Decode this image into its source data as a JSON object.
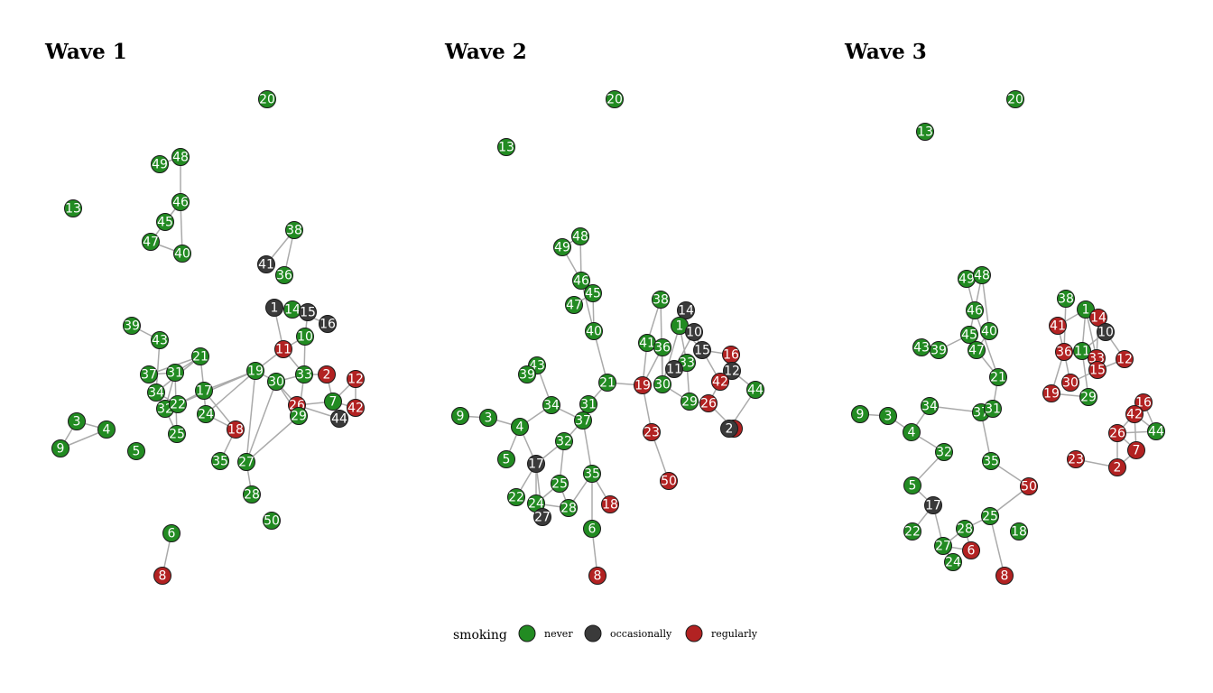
{
  "colors": {
    "never": "#228b22",
    "occasionally": "#3a3a3a",
    "regularly": "#b22222"
  },
  "legend": {
    "title": "smoking",
    "items": [
      {
        "key": "never",
        "label": "never"
      },
      {
        "key": "occasionally",
        "label": "occasionally"
      },
      {
        "key": "regularly",
        "label": "regularly"
      }
    ]
  },
  "waves": [
    {
      "title": "Wave 1",
      "nodes": [
        [
          "20",
          "never"
        ],
        [
          "13",
          "never"
        ],
        [
          "49",
          "never"
        ],
        [
          "48",
          "never"
        ],
        [
          "46",
          "never"
        ],
        [
          "45",
          "never"
        ],
        [
          "47",
          "never"
        ],
        [
          "40",
          "never"
        ],
        [
          "38",
          "never"
        ],
        [
          "41",
          "occasionally"
        ],
        [
          "36",
          "never"
        ],
        [
          "1",
          "occasionally"
        ],
        [
          "14",
          "never"
        ],
        [
          "15",
          "occasionally"
        ],
        [
          "16",
          "occasionally"
        ],
        [
          "10",
          "never"
        ],
        [
          "11",
          "regularly"
        ],
        [
          "39",
          "never"
        ],
        [
          "43",
          "never"
        ],
        [
          "21",
          "never"
        ],
        [
          "37",
          "never"
        ],
        [
          "31",
          "never"
        ],
        [
          "34",
          "never"
        ],
        [
          "17",
          "never"
        ],
        [
          "19",
          "never"
        ],
        [
          "30",
          "never"
        ],
        [
          "33",
          "never"
        ],
        [
          "2",
          "regularly"
        ],
        [
          "12",
          "regularly"
        ],
        [
          "32",
          "never"
        ],
        [
          "22",
          "never"
        ],
        [
          "24",
          "never"
        ],
        [
          "26",
          "regularly"
        ],
        [
          "7",
          "never"
        ],
        [
          "29",
          "never"
        ],
        [
          "44",
          "occasionally"
        ],
        [
          "42",
          "regularly"
        ],
        [
          "3",
          "never"
        ],
        [
          "4",
          "never"
        ],
        [
          "9",
          "never"
        ],
        [
          "25",
          "never"
        ],
        [
          "5",
          "never"
        ],
        [
          "18",
          "regularly"
        ],
        [
          "35",
          "never"
        ],
        [
          "27",
          "never"
        ],
        [
          "28",
          "never"
        ],
        [
          "50",
          "never"
        ],
        [
          "6",
          "never"
        ],
        [
          "8",
          "regularly"
        ]
      ],
      "edges": [
        [
          "49",
          "48"
        ],
        [
          "48",
          "46"
        ],
        [
          "46",
          "45"
        ],
        [
          "45",
          "47"
        ],
        [
          "47",
          "40"
        ],
        [
          "46",
          "40"
        ],
        [
          "38",
          "41"
        ],
        [
          "38",
          "36"
        ],
        [
          "1",
          "11"
        ],
        [
          "1",
          "14"
        ],
        [
          "14",
          "15"
        ],
        [
          "15",
          "10"
        ],
        [
          "14",
          "16"
        ],
        [
          "10",
          "11"
        ],
        [
          "11",
          "19"
        ],
        [
          "11",
          "33"
        ],
        [
          "10",
          "33"
        ],
        [
          "39",
          "43"
        ],
        [
          "43",
          "34"
        ],
        [
          "34",
          "21"
        ],
        [
          "21",
          "31"
        ],
        [
          "21",
          "37"
        ],
        [
          "37",
          "31"
        ],
        [
          "31",
          "32"
        ],
        [
          "32",
          "22"
        ],
        [
          "34",
          "22"
        ],
        [
          "22",
          "17"
        ],
        [
          "17",
          "21"
        ],
        [
          "17",
          "24"
        ],
        [
          "24",
          "19"
        ],
        [
          "17",
          "19"
        ],
        [
          "22",
          "19"
        ],
        [
          "19",
          "30"
        ],
        [
          "30",
          "33"
        ],
        [
          "30",
          "26"
        ],
        [
          "30",
          "29"
        ],
        [
          "33",
          "29"
        ],
        [
          "33",
          "2"
        ],
        [
          "26",
          "7"
        ],
        [
          "26",
          "29"
        ],
        [
          "26",
          "44"
        ],
        [
          "7",
          "12"
        ],
        [
          "12",
          "42"
        ],
        [
          "7",
          "42"
        ],
        [
          "2",
          "7"
        ],
        [
          "19",
          "27"
        ],
        [
          "30",
          "27"
        ],
        [
          "27",
          "29"
        ],
        [
          "24",
          "18"
        ],
        [
          "17",
          "18"
        ],
        [
          "18",
          "35"
        ],
        [
          "27",
          "28"
        ],
        [
          "32",
          "25"
        ],
        [
          "3",
          "4"
        ],
        [
          "3",
          "9"
        ],
        [
          "9",
          "4"
        ],
        [
          "6",
          "8"
        ],
        [
          "31",
          "25"
        ]
      ]
    },
    {
      "title": "Wave 2",
      "nodes": [
        [
          "20",
          "never"
        ],
        [
          "13",
          "never"
        ],
        [
          "49",
          "never"
        ],
        [
          "48",
          "never"
        ],
        [
          "46",
          "never"
        ],
        [
          "45",
          "never"
        ],
        [
          "47",
          "never"
        ],
        [
          "40",
          "never"
        ],
        [
          "38",
          "never"
        ],
        [
          "14",
          "occasionally"
        ],
        [
          "1",
          "never"
        ],
        [
          "10",
          "occasionally"
        ],
        [
          "41",
          "never"
        ],
        [
          "36",
          "never"
        ],
        [
          "15",
          "occasionally"
        ],
        [
          "16",
          "regularly"
        ],
        [
          "33",
          "never"
        ],
        [
          "11",
          "occasionally"
        ],
        [
          "12",
          "occasionally"
        ],
        [
          "42",
          "regularly"
        ],
        [
          "44",
          "never"
        ],
        [
          "30",
          "never"
        ],
        [
          "19",
          "regularly"
        ],
        [
          "21",
          "never"
        ],
        [
          "29",
          "never"
        ],
        [
          "26",
          "regularly"
        ],
        [
          "43",
          "never"
        ],
        [
          "39",
          "never"
        ],
        [
          "34",
          "never"
        ],
        [
          "31",
          "never"
        ],
        [
          "37",
          "never"
        ],
        [
          "9",
          "never"
        ],
        [
          "3",
          "never"
        ],
        [
          "4",
          "never"
        ],
        [
          "7",
          "regularly"
        ],
        [
          "2",
          "occasionally"
        ],
        [
          "23",
          "regularly"
        ],
        [
          "32",
          "never"
        ],
        [
          "5",
          "never"
        ],
        [
          "17",
          "occasionally"
        ],
        [
          "35",
          "never"
        ],
        [
          "50",
          "regularly"
        ],
        [
          "25",
          "never"
        ],
        [
          "22",
          "never"
        ],
        [
          "24",
          "never"
        ],
        [
          "28",
          "never"
        ],
        [
          "27",
          "occasionally"
        ],
        [
          "18",
          "regularly"
        ],
        [
          "6",
          "never"
        ],
        [
          "8",
          "regularly"
        ]
      ],
      "edges": [
        [
          "49",
          "48"
        ],
        [
          "48",
          "46"
        ],
        [
          "49",
          "46"
        ],
        [
          "46",
          "45"
        ],
        [
          "45",
          "47"
        ],
        [
          "46",
          "40"
        ],
        [
          "45",
          "40"
        ],
        [
          "40",
          "21"
        ],
        [
          "21",
          "31"
        ],
        [
          "31",
          "37"
        ],
        [
          "21",
          "19"
        ],
        [
          "19",
          "41"
        ],
        [
          "19",
          "36"
        ],
        [
          "41",
          "38"
        ],
        [
          "38",
          "30"
        ],
        [
          "41",
          "36"
        ],
        [
          "36",
          "30"
        ],
        [
          "1",
          "14"
        ],
        [
          "1",
          "10"
        ],
        [
          "1",
          "15"
        ],
        [
          "1",
          "33"
        ],
        [
          "1",
          "30"
        ],
        [
          "10",
          "15"
        ],
        [
          "10",
          "11"
        ],
        [
          "15",
          "16"
        ],
        [
          "15",
          "42"
        ],
        [
          "16",
          "12"
        ],
        [
          "12",
          "44"
        ],
        [
          "42",
          "12"
        ],
        [
          "42",
          "26"
        ],
        [
          "33",
          "29"
        ],
        [
          "29",
          "26"
        ],
        [
          "30",
          "29"
        ],
        [
          "11",
          "33"
        ],
        [
          "44",
          "2"
        ],
        [
          "26",
          "7"
        ],
        [
          "7",
          "2"
        ],
        [
          "19",
          "23"
        ],
        [
          "23",
          "50"
        ],
        [
          "43",
          "34"
        ],
        [
          "39",
          "43"
        ],
        [
          "34",
          "37"
        ],
        [
          "4",
          "34"
        ],
        [
          "9",
          "3"
        ],
        [
          "3",
          "4"
        ],
        [
          "4",
          "5"
        ],
        [
          "4",
          "17"
        ],
        [
          "37",
          "32"
        ],
        [
          "32",
          "17"
        ],
        [
          "17",
          "22"
        ],
        [
          "17",
          "24"
        ],
        [
          "17",
          "27"
        ],
        [
          "24",
          "27"
        ],
        [
          "24",
          "28"
        ],
        [
          "25",
          "28"
        ],
        [
          "32",
          "25"
        ],
        [
          "37",
          "35"
        ],
        [
          "35",
          "28"
        ],
        [
          "35",
          "18"
        ],
        [
          "35",
          "6"
        ],
        [
          "6",
          "8"
        ],
        [
          "24",
          "25"
        ]
      ]
    },
    {
      "title": "Wave 3",
      "nodes": [
        [
          "20",
          "never"
        ],
        [
          "13",
          "never"
        ],
        [
          "49",
          "never"
        ],
        [
          "48",
          "never"
        ],
        [
          "46",
          "never"
        ],
        [
          "45",
          "never"
        ],
        [
          "40",
          "never"
        ],
        [
          "43",
          "never"
        ],
        [
          "39",
          "never"
        ],
        [
          "47",
          "never"
        ],
        [
          "21",
          "never"
        ],
        [
          "38",
          "never"
        ],
        [
          "1",
          "never"
        ],
        [
          "14",
          "regularly"
        ],
        [
          "41",
          "regularly"
        ],
        [
          "10",
          "occasionally"
        ],
        [
          "36",
          "regularly"
        ],
        [
          "11",
          "never"
        ],
        [
          "33",
          "regularly"
        ],
        [
          "12",
          "regularly"
        ],
        [
          "15",
          "regularly"
        ],
        [
          "30",
          "regularly"
        ],
        [
          "19",
          "regularly"
        ],
        [
          "29",
          "never"
        ],
        [
          "34",
          "never"
        ],
        [
          "37",
          "never"
        ],
        [
          "31",
          "never"
        ],
        [
          "9",
          "never"
        ],
        [
          "3",
          "never"
        ],
        [
          "4",
          "never"
        ],
        [
          "32",
          "never"
        ],
        [
          "16",
          "regularly"
        ],
        [
          "42",
          "regularly"
        ],
        [
          "26",
          "regularly"
        ],
        [
          "44",
          "never"
        ],
        [
          "7",
          "regularly"
        ],
        [
          "23",
          "regularly"
        ],
        [
          "2",
          "regularly"
        ],
        [
          "35",
          "never"
        ],
        [
          "5",
          "never"
        ],
        [
          "50",
          "regularly"
        ],
        [
          "17",
          "occasionally"
        ],
        [
          "25",
          "never"
        ],
        [
          "22",
          "never"
        ],
        [
          "28",
          "never"
        ],
        [
          "18",
          "never"
        ],
        [
          "27",
          "never"
        ],
        [
          "6",
          "regularly"
        ],
        [
          "24",
          "never"
        ],
        [
          "8",
          "regularly"
        ]
      ],
      "edges": [
        [
          "49",
          "48"
        ],
        [
          "49",
          "46"
        ],
        [
          "48",
          "46"
        ],
        [
          "46",
          "45"
        ],
        [
          "48",
          "40"
        ],
        [
          "45",
          "47"
        ],
        [
          "40",
          "47"
        ],
        [
          "46",
          "21"
        ],
        [
          "47",
          "21"
        ],
        [
          "45",
          "39"
        ],
        [
          "43",
          "39"
        ],
        [
          "21",
          "31"
        ],
        [
          "37",
          "31"
        ],
        [
          "37",
          "35"
        ],
        [
          "35",
          "50"
        ],
        [
          "50",
          "25"
        ],
        [
          "25",
          "28"
        ],
        [
          "25",
          "8"
        ],
        [
          "28",
          "6"
        ],
        [
          "27",
          "6"
        ],
        [
          "27",
          "24"
        ],
        [
          "27",
          "28"
        ],
        [
          "17",
          "27"
        ],
        [
          "17",
          "22"
        ],
        [
          "5",
          "17"
        ],
        [
          "32",
          "5"
        ],
        [
          "4",
          "32"
        ],
        [
          "3",
          "4"
        ],
        [
          "9",
          "3"
        ],
        [
          "34",
          "4"
        ],
        [
          "34",
          "37"
        ],
        [
          "38",
          "36"
        ],
        [
          "41",
          "36"
        ],
        [
          "1",
          "14"
        ],
        [
          "1",
          "11"
        ],
        [
          "14",
          "10"
        ],
        [
          "10",
          "12"
        ],
        [
          "10",
          "11"
        ],
        [
          "11",
          "33"
        ],
        [
          "33",
          "15"
        ],
        [
          "15",
          "12"
        ],
        [
          "36",
          "33"
        ],
        [
          "36",
          "30"
        ],
        [
          "30",
          "15"
        ],
        [
          "36",
          "19"
        ],
        [
          "19",
          "29"
        ],
        [
          "11",
          "29"
        ],
        [
          "41",
          "1"
        ],
        [
          "1",
          "33"
        ],
        [
          "14",
          "33"
        ],
        [
          "16",
          "42"
        ],
        [
          "16",
          "44"
        ],
        [
          "42",
          "26"
        ],
        [
          "42",
          "7"
        ],
        [
          "26",
          "7"
        ],
        [
          "26",
          "44"
        ],
        [
          "7",
          "2"
        ],
        [
          "26",
          "2"
        ],
        [
          "23",
          "2"
        ],
        [
          "42",
          "44"
        ]
      ]
    }
  ]
}
